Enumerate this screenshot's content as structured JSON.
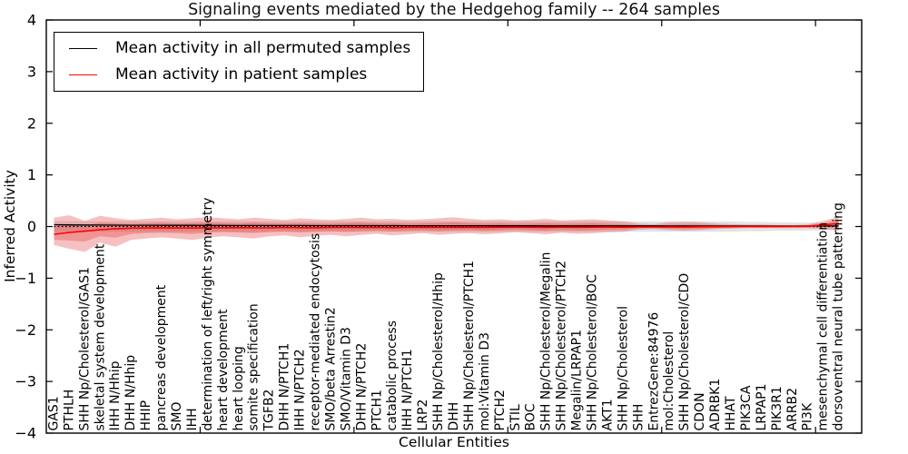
{
  "chart_data": {
    "type": "line",
    "title": "Signaling events mediated by the Hedgehog family -- 264 samples",
    "xlabel": "Cellular Entities",
    "ylabel": "Inferred Activity",
    "ylim": [
      -4,
      4
    ],
    "y_ticks": [
      4,
      3,
      2,
      1,
      0,
      -1,
      -2,
      -3,
      -4
    ],
    "x_major_ticks": [
      10,
      20,
      30,
      40,
      50
    ],
    "xlim": [
      0,
      53
    ],
    "grid": false,
    "legend_position": "upper left",
    "tick_direction": "in",
    "categories": [
      "GAS1",
      "PTHLH",
      "SHH Np/Cholesterol/GAS1",
      "skeletal system development",
      "IHH N/Hhip",
      "DHH N/Hhip",
      "HHIP",
      "pancreas development",
      "SMO",
      "IHH",
      "determination of left/right symmetry",
      "heart development",
      "heart looping",
      "somite specification",
      "TGFB2",
      "DHH N/PTCH1",
      "IHH N/PTCH2",
      "receptor-mediated endocytosis",
      "SMO/beta Arrestin2",
      "SMO/Vitamin D3",
      "DHH N/PTCH2",
      "PTCH1",
      "catabolic process",
      "IHH N/PTCH1",
      "LRP2",
      "SHH Np/Cholesterol/Hhip",
      "DHH",
      "SHH Np/Cholesterol/PTCH1",
      "mol:Vitamin D3",
      "PTCH2",
      "STIL",
      "BOC",
      "SHH Np/Cholesterol/Megalin",
      "SHH Np/Cholesterol/PTCH2",
      "Megalin/LRPAP1",
      "SHH Np/Cholesterol/BOC",
      "AKT1",
      "SHH Np/Cholesterol",
      "SHH",
      "EntrezGene:84976",
      "mol:Cholesterol",
      "SHH Np/Cholesterol/CDO",
      "CDON",
      "ADRBK1",
      "HHAT",
      "PIK3CA",
      "LRPAP1",
      "PIK3R1",
      "ARRB2",
      "PI3K",
      "mesenchymal cell differentiation",
      "dorsoventral neural tube patterning"
    ],
    "series": [
      {
        "name": "Mean activity in all permuted samples",
        "color": "#000000",
        "style": "solid",
        "values": [
          0.035,
          0.032,
          0.03,
          0.028,
          0.026,
          0.025,
          0.024,
          0.023,
          0.022,
          0.022,
          0.021,
          0.021,
          0.02,
          0.02,
          0.02,
          0.019,
          0.019,
          0.018,
          0.018,
          0.018,
          0.017,
          0.017,
          0.017,
          0.016,
          0.016,
          0.016,
          0.015,
          0.015,
          0.015,
          0.014,
          0.014,
          0.014,
          0.013,
          0.013,
          0.013,
          0.013,
          0.012,
          0.012,
          0.012,
          0.012,
          0.011,
          0.011,
          0.011,
          0.011,
          0.01,
          0.01,
          0.01,
          0.01,
          0.01,
          0.01,
          0.01,
          0.01
        ]
      },
      {
        "name": "Mean activity in patient samples",
        "color": "#ff0000",
        "style": "solid",
        "values": [
          -0.15,
          -0.115,
          -0.09,
          -0.062,
          -0.042,
          -0.032,
          -0.028,
          -0.025,
          -0.028,
          -0.03,
          -0.024,
          -0.026,
          -0.022,
          -0.024,
          -0.026,
          -0.02,
          -0.022,
          -0.024,
          -0.02,
          -0.018,
          -0.02,
          -0.018,
          -0.022,
          -0.018,
          -0.016,
          -0.018,
          -0.016,
          -0.015,
          -0.016,
          -0.014,
          -0.012,
          -0.014,
          -0.015,
          -0.012,
          -0.014,
          -0.013,
          -0.01,
          -0.012,
          -0.008,
          -0.008,
          -0.009,
          -0.008,
          -0.006,
          -0.004,
          -0.002,
          0,
          0.001,
          0.002,
          0.003,
          0.006,
          0.03,
          0.062
        ]
      }
    ],
    "zero_line": {
      "y": 0,
      "style": "dotted",
      "color": "#000000"
    },
    "bands": [
      {
        "name": "permuted samples range",
        "color": "#999999",
        "opacity": 0.28,
        "upper": [
          0.1,
          0.1,
          0.1,
          0.1,
          0.1,
          0.1,
          0.1,
          0.1,
          0.1,
          0.1,
          0.1,
          0.1,
          0.1,
          0.1,
          0.1,
          0.1,
          0.1,
          0.1,
          0.1,
          0.1,
          0.1,
          0.1,
          0.1,
          0.1,
          0.1,
          0.1,
          0.1,
          0.1,
          0.1,
          0.1,
          0.1,
          0.1,
          0.1,
          0.1,
          0.1,
          0.1,
          0.1,
          0.1,
          0.1,
          0.1,
          0.1,
          0.1,
          0.1,
          0.1,
          0.1,
          0.09,
          0.09,
          0.08,
          0.08,
          0.08,
          0.07,
          0.06
        ],
        "lower": [
          -0.1,
          -0.1,
          -0.1,
          -0.1,
          -0.1,
          -0.1,
          -0.1,
          -0.1,
          -0.1,
          -0.1,
          -0.1,
          -0.1,
          -0.1,
          -0.1,
          -0.1,
          -0.1,
          -0.1,
          -0.1,
          -0.1,
          -0.1,
          -0.1,
          -0.1,
          -0.1,
          -0.1,
          -0.1,
          -0.1,
          -0.1,
          -0.1,
          -0.1,
          -0.1,
          -0.1,
          -0.1,
          -0.1,
          -0.1,
          -0.1,
          -0.1,
          -0.1,
          -0.1,
          -0.1,
          -0.1,
          -0.1,
          -0.1,
          -0.1,
          -0.1,
          -0.1,
          -0.09,
          -0.09,
          -0.08,
          -0.08,
          -0.08,
          -0.07,
          -0.06
        ]
      },
      {
        "name": "patient samples range",
        "color": "#e03030",
        "opacity": 0.3,
        "upper": [
          0.17,
          0.22,
          0.11,
          0.21,
          0.16,
          0.13,
          0.15,
          0.17,
          0.14,
          0.16,
          0.18,
          0.16,
          0.14,
          0.17,
          0.15,
          0.13,
          0.16,
          0.14,
          0.13,
          0.15,
          0.17,
          0.14,
          0.15,
          0.13,
          0.14,
          0.16,
          0.18,
          0.15,
          0.13,
          0.14,
          0.12,
          0.13,
          0.15,
          0.12,
          0.13,
          0.14,
          0.12,
          0.1,
          0.06,
          0.05,
          0.08,
          0.09,
          0.08,
          0.06,
          0.05,
          0.04,
          0.04,
          0.03,
          0.03,
          0.04,
          0.11,
          0.19
        ],
        "lower": [
          -0.36,
          -0.43,
          -0.49,
          -0.31,
          -0.39,
          -0.26,
          -0.23,
          -0.21,
          -0.23,
          -0.26,
          -0.21,
          -0.19,
          -0.21,
          -0.23,
          -0.19,
          -0.17,
          -0.21,
          -0.18,
          -0.16,
          -0.19,
          -0.16,
          -0.14,
          -0.17,
          -0.15,
          -0.13,
          -0.16,
          -0.14,
          -0.13,
          -0.15,
          -0.13,
          -0.11,
          -0.13,
          -0.15,
          -0.12,
          -0.14,
          -0.13,
          -0.11,
          -0.1,
          -0.06,
          -0.05,
          -0.07,
          -0.08,
          -0.07,
          -0.05,
          -0.04,
          -0.03,
          -0.03,
          -0.03,
          -0.03,
          -0.03,
          -0.05,
          -0.08
        ]
      }
    ]
  }
}
